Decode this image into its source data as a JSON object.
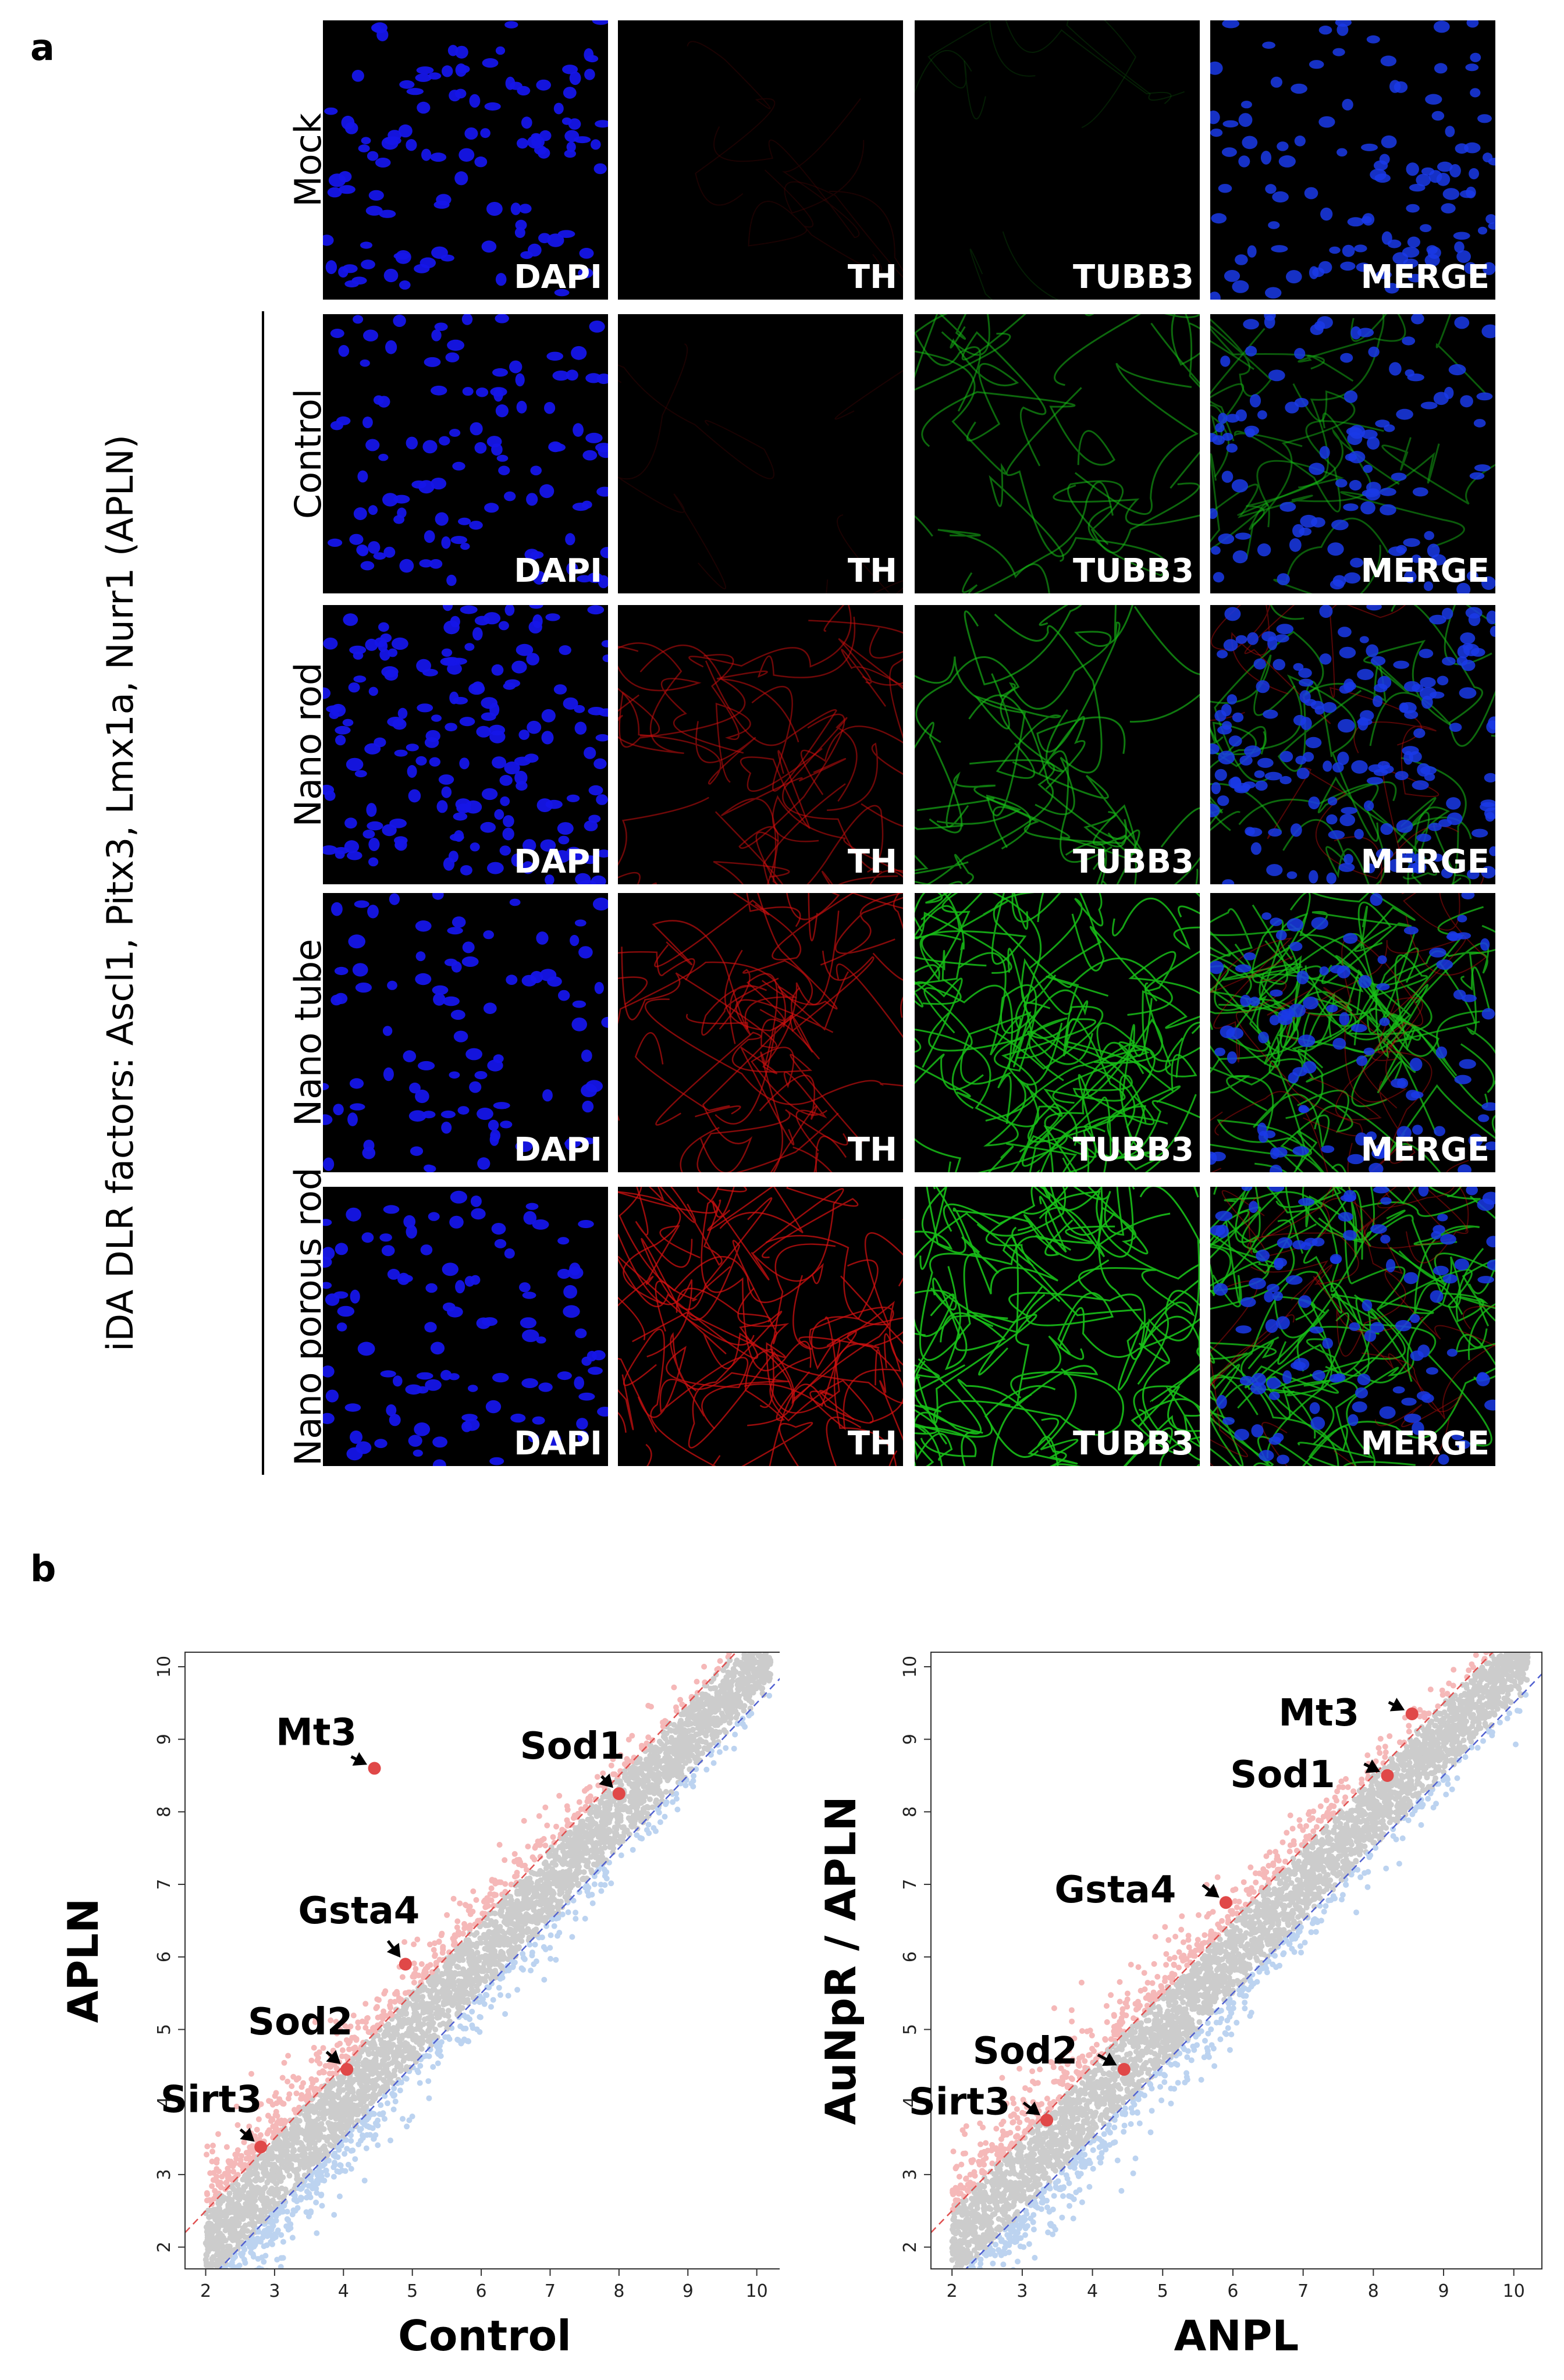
{
  "panel_a": {
    "letter": "a",
    "group_label": "iDA DLR factors: Ascl1, Pitx3, Lmx1a, Nurr1 (APLN)",
    "rows": [
      {
        "label": "Mock",
        "id": "mock"
      },
      {
        "label": "Control",
        "id": "control"
      },
      {
        "label": "Nano rod",
        "id": "nano-rod"
      },
      {
        "label": "Nano tube",
        "id": "nano-tube"
      },
      {
        "label": "Nano porous rod",
        "id": "nano-porous-rod"
      }
    ],
    "channels": [
      {
        "label": "DAPI",
        "color": "#1515e8"
      },
      {
        "label": "TH",
        "color": "#d41010"
      },
      {
        "label": "TUBB3",
        "color": "#18c018"
      },
      {
        "label": "MERGE",
        "color": "#4060e0"
      }
    ],
    "signal_levels": [
      [
        0.5,
        0.05,
        0.08,
        0.5
      ],
      [
        0.45,
        0.15,
        0.35,
        0.45
      ],
      [
        0.9,
        0.55,
        0.5,
        0.9
      ],
      [
        0.35,
        0.75,
        0.9,
        0.8
      ],
      [
        0.45,
        0.95,
        1.0,
        0.95
      ]
    ]
  },
  "panel_b": {
    "letter": "b",
    "chart_data": [
      {
        "type": "scatter",
        "xlabel": "Control",
        "ylabel": "APLN",
        "xlim": [
          1.7,
          10.4
        ],
        "ylim": [
          1.7,
          10.2
        ],
        "xticks": [
          "2",
          "3",
          "4",
          "5",
          "6",
          "7",
          "8",
          "9",
          "10"
        ],
        "yticks": [
          "2",
          "3",
          "4",
          "5",
          "6",
          "7",
          "8",
          "9",
          "10"
        ],
        "reference_lines": [
          {
            "name": "upper",
            "offset": 0.5,
            "color": "#e05050"
          },
          {
            "name": "lower",
            "offset": -0.5,
            "color": "#5060d0"
          }
        ],
        "colors": {
          "up": "#f5b8b8",
          "same": "#cccccc",
          "down": "#bcd3f0",
          "highlight": "#e04848"
        },
        "highlighted_genes": [
          {
            "name": "Mt3",
            "x": 4.45,
            "y": 8.6
          },
          {
            "name": "Sod1",
            "x": 8.0,
            "y": 8.25
          },
          {
            "name": "Gsta4",
            "x": 4.9,
            "y": 5.9
          },
          {
            "name": "Sod2",
            "x": 4.05,
            "y": 4.45
          },
          {
            "name": "Sirt3",
            "x": 2.8,
            "y": 3.38
          }
        ]
      },
      {
        "type": "scatter",
        "xlabel": "ANPL",
        "ylabel": "AuNpR / APLN",
        "xlim": [
          1.7,
          10.4
        ],
        "ylim": [
          1.7,
          10.2
        ],
        "xticks": [
          "2",
          "3",
          "4",
          "5",
          "6",
          "7",
          "8",
          "9",
          "10"
        ],
        "yticks": [
          "2",
          "3",
          "4",
          "5",
          "6",
          "7",
          "8",
          "9",
          "10"
        ],
        "reference_lines": [
          {
            "name": "upper",
            "offset": 0.5,
            "color": "#e05050"
          },
          {
            "name": "lower",
            "offset": -0.5,
            "color": "#5060d0"
          }
        ],
        "colors": {
          "up": "#f5b8b8",
          "same": "#cccccc",
          "down": "#bcd3f0",
          "highlight": "#e04848"
        },
        "highlighted_genes": [
          {
            "name": "Mt3",
            "x": 8.55,
            "y": 9.35
          },
          {
            "name": "Sod1",
            "x": 8.2,
            "y": 8.5
          },
          {
            "name": "Gsta4",
            "x": 5.9,
            "y": 6.75
          },
          {
            "name": "Sod2",
            "x": 4.45,
            "y": 4.45
          },
          {
            "name": "Sirt3",
            "x": 3.35,
            "y": 3.75
          }
        ]
      }
    ]
  }
}
